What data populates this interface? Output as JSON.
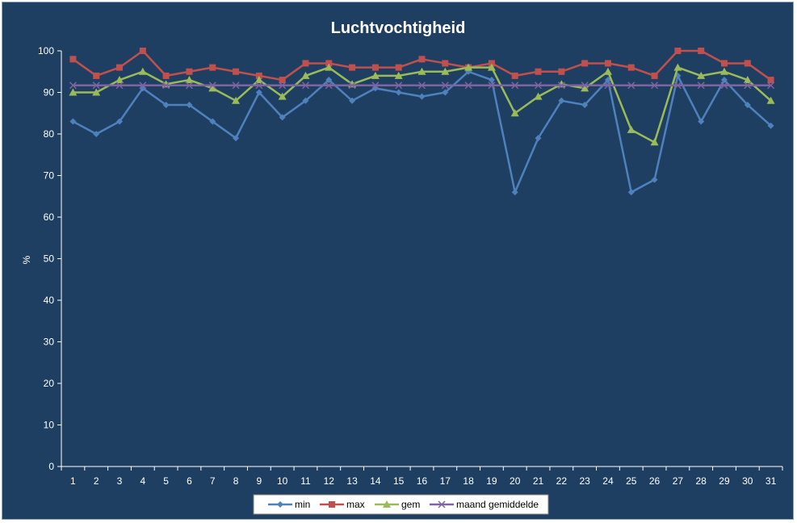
{
  "chart_data": {
    "type": "line",
    "title": "Luchtvochtigheid",
    "xlabel": "",
    "ylabel": "%",
    "ylim": [
      0,
      100
    ],
    "yticks": [
      "0",
      "10",
      "20",
      "30",
      "40",
      "50",
      "60",
      "70",
      "80",
      "90",
      "100"
    ],
    "categories": [
      "1",
      "2",
      "3",
      "4",
      "5",
      "6",
      "7",
      "8",
      "9",
      "10",
      "11",
      "12",
      "13",
      "14",
      "15",
      "16",
      "17",
      "18",
      "19",
      "20",
      "21",
      "22",
      "23",
      "24",
      "25",
      "26",
      "27",
      "28",
      "29",
      "30",
      "31"
    ],
    "grid": false,
    "legend_position": "bottom",
    "background_color": "#1f3f62",
    "series": [
      {
        "name": "min",
        "color": "#4f81bd",
        "marker": "diamond",
        "values": [
          83,
          80,
          83,
          91,
          87,
          87,
          83,
          79,
          90,
          84,
          88,
          93,
          88,
          91,
          90,
          89,
          90,
          95,
          93,
          66,
          79,
          88,
          87,
          93,
          66,
          69,
          94,
          83,
          93,
          87,
          82
        ]
      },
      {
        "name": "max",
        "color": "#c0504d",
        "marker": "square",
        "values": [
          98,
          94,
          96,
          100,
          94,
          95,
          96,
          95,
          94,
          93,
          97,
          97,
          96,
          96,
          96,
          98,
          97,
          96,
          97,
          94,
          95,
          95,
          97,
          97,
          96,
          94,
          100,
          100,
          97,
          97,
          93
        ]
      },
      {
        "name": "gem",
        "color": "#9bbb59",
        "marker": "triangle",
        "values": [
          90,
          90,
          93,
          95,
          92,
          93,
          91,
          88,
          93,
          89,
          94,
          96,
          92,
          94,
          94,
          95,
          95,
          96,
          96,
          85,
          89,
          92,
          91,
          95,
          81,
          78,
          96,
          94,
          95,
          93,
          88
        ]
      },
      {
        "name": "maand gemiddelde",
        "color": "#8064a2",
        "marker": "x",
        "values": [
          91.7,
          91.7,
          91.7,
          91.7,
          91.7,
          91.7,
          91.7,
          91.7,
          91.7,
          91.7,
          91.7,
          91.7,
          91.7,
          91.7,
          91.7,
          91.7,
          91.7,
          91.7,
          91.7,
          91.7,
          91.7,
          91.7,
          91.7,
          91.7,
          91.7,
          91.7,
          91.7,
          91.7,
          91.7,
          91.7,
          91.7
        ]
      }
    ]
  }
}
